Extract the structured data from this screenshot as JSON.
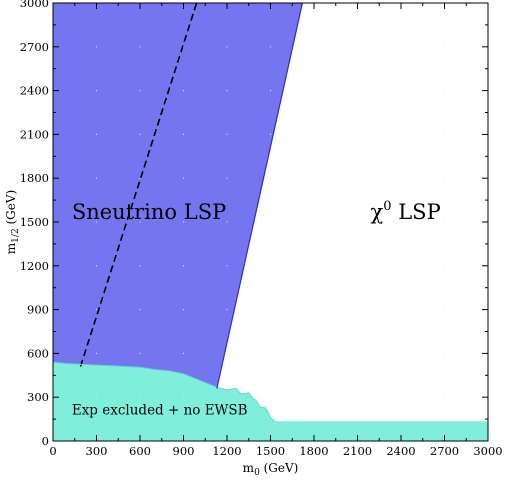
{
  "chart_data": {
    "type": "area",
    "xlabel_main": "m",
    "xlabel_sub": "0",
    "xlabel_unit": " (GeV)",
    "ylabel_main": "m",
    "ylabel_sub": "1/2",
    "ylabel_unit": " (GeV)",
    "xlim": [
      0,
      3000
    ],
    "ylim": [
      0,
      3000
    ],
    "xticks": [
      "0",
      "300",
      "600",
      "900",
      "1200",
      "1500",
      "1800",
      "2100",
      "2400",
      "2700",
      "3000"
    ],
    "yticks": [
      "0",
      "300",
      "600",
      "900",
      "1200",
      "1500",
      "1800",
      "2100",
      "2400",
      "2700",
      "3000"
    ],
    "grid": "dotted",
    "regions": [
      {
        "name": "Sneutrino LSP",
        "color": "#7575f0",
        "boundary": [
          [
            0,
            540
          ],
          [
            1130,
            360
          ],
          [
            1720,
            3000
          ],
          [
            0,
            3000
          ]
        ]
      },
      {
        "name": "Exp excluded + no EWSB",
        "color": "#7fefdc",
        "boundary": [
          [
            0,
            0
          ],
          [
            3000,
            0
          ],
          [
            3000,
            135
          ],
          [
            1530,
            135
          ],
          [
            1500,
            160
          ],
          [
            1480,
            205
          ],
          [
            1460,
            230
          ],
          [
            1430,
            230
          ],
          [
            1400,
            280
          ],
          [
            1380,
            290
          ],
          [
            1350,
            330
          ],
          [
            1300,
            320
          ],
          [
            1260,
            360
          ],
          [
            1200,
            350
          ],
          [
            1150,
            360
          ],
          [
            1100,
            380
          ],
          [
            1000,
            420
          ],
          [
            900,
            460
          ],
          [
            800,
            480
          ],
          [
            700,
            490
          ],
          [
            600,
            505
          ],
          [
            500,
            510
          ],
          [
            400,
            515
          ],
          [
            300,
            520
          ],
          [
            200,
            525
          ],
          [
            100,
            530
          ],
          [
            0,
            540
          ]
        ]
      }
    ],
    "series": [
      {
        "style": "dashed",
        "x": [
          190,
          990
        ],
        "y": [
          510,
          3000
        ]
      }
    ],
    "annotations": [
      {
        "text": "Sneutrino LSP",
        "x": 130,
        "y": 1520,
        "size": "large"
      },
      {
        "text_main": "χ",
        "text_sup": "0",
        "text_rest": " LSP",
        "x": 2190,
        "y": 1520,
        "size": "large"
      },
      {
        "text": "Exp excluded + no EWSB",
        "x": 130,
        "y": 180,
        "size": "small"
      }
    ]
  }
}
